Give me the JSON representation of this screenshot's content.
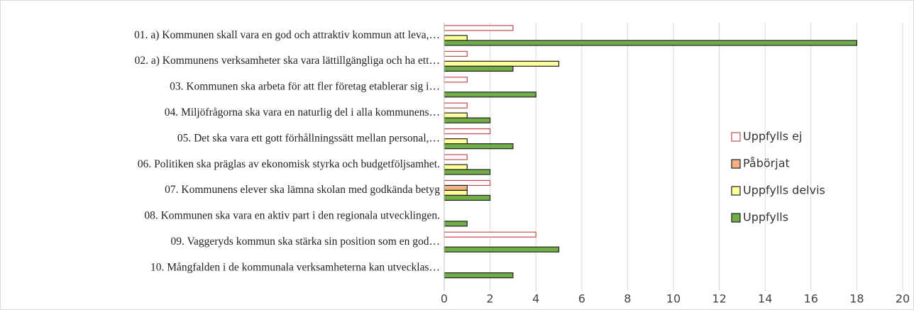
{
  "chart_data": {
    "type": "bar",
    "orientation": "horizontal",
    "categories": [
      "01. a) Kommunen skall vara en god och attraktiv kommun att leva,…",
      "02. a) Kommunens verksamheter ska vara lättillgängliga och ha ett…",
      "03. Kommunen ska arbeta för att fler företag etablerar sig i…",
      "04. Miljöfrågorna ska vara en naturlig del i alla kommunens…",
      "05. Det ska vara ett gott förhållningssätt mellan personal,…",
      "06. Politiken ska präglas av ekonomisk styrka och budgetföljsamhet.",
      "07. Kommunens elever ska lämna skolan med godkända betyg",
      "08. Kommunen ska vara en aktiv part i den regionala utvecklingen.",
      "09. Vaggeryds kommun ska stärka sin position som en god…",
      "10. Mångfalden i de kommunala verksamheterna kan utvecklas…"
    ],
    "series": [
      {
        "name": "Uppfylls ej",
        "color": "#ffffff",
        "values": [
          3,
          1,
          1,
          1,
          2,
          1,
          2,
          0,
          4,
          0
        ]
      },
      {
        "name": "Påbörjat",
        "color": "#f4b183",
        "values": [
          0,
          0,
          0,
          0,
          0,
          0,
          1,
          0,
          0,
          0
        ]
      },
      {
        "name": "Uppfylls delvis",
        "color": "#ffff99",
        "values": [
          1,
          5,
          0,
          1,
          1,
          1,
          1,
          0,
          0,
          0
        ]
      },
      {
        "name": "Uppfylls",
        "color": "#70ad47",
        "values": [
          18,
          3,
          4,
          2,
          3,
          2,
          2,
          1,
          5,
          3
        ]
      }
    ],
    "xlim": [
      0,
      20
    ],
    "xticks": [
      0,
      2,
      4,
      6,
      8,
      10,
      12,
      14,
      16,
      18,
      20
    ],
    "grid": true,
    "legend": "right"
  }
}
